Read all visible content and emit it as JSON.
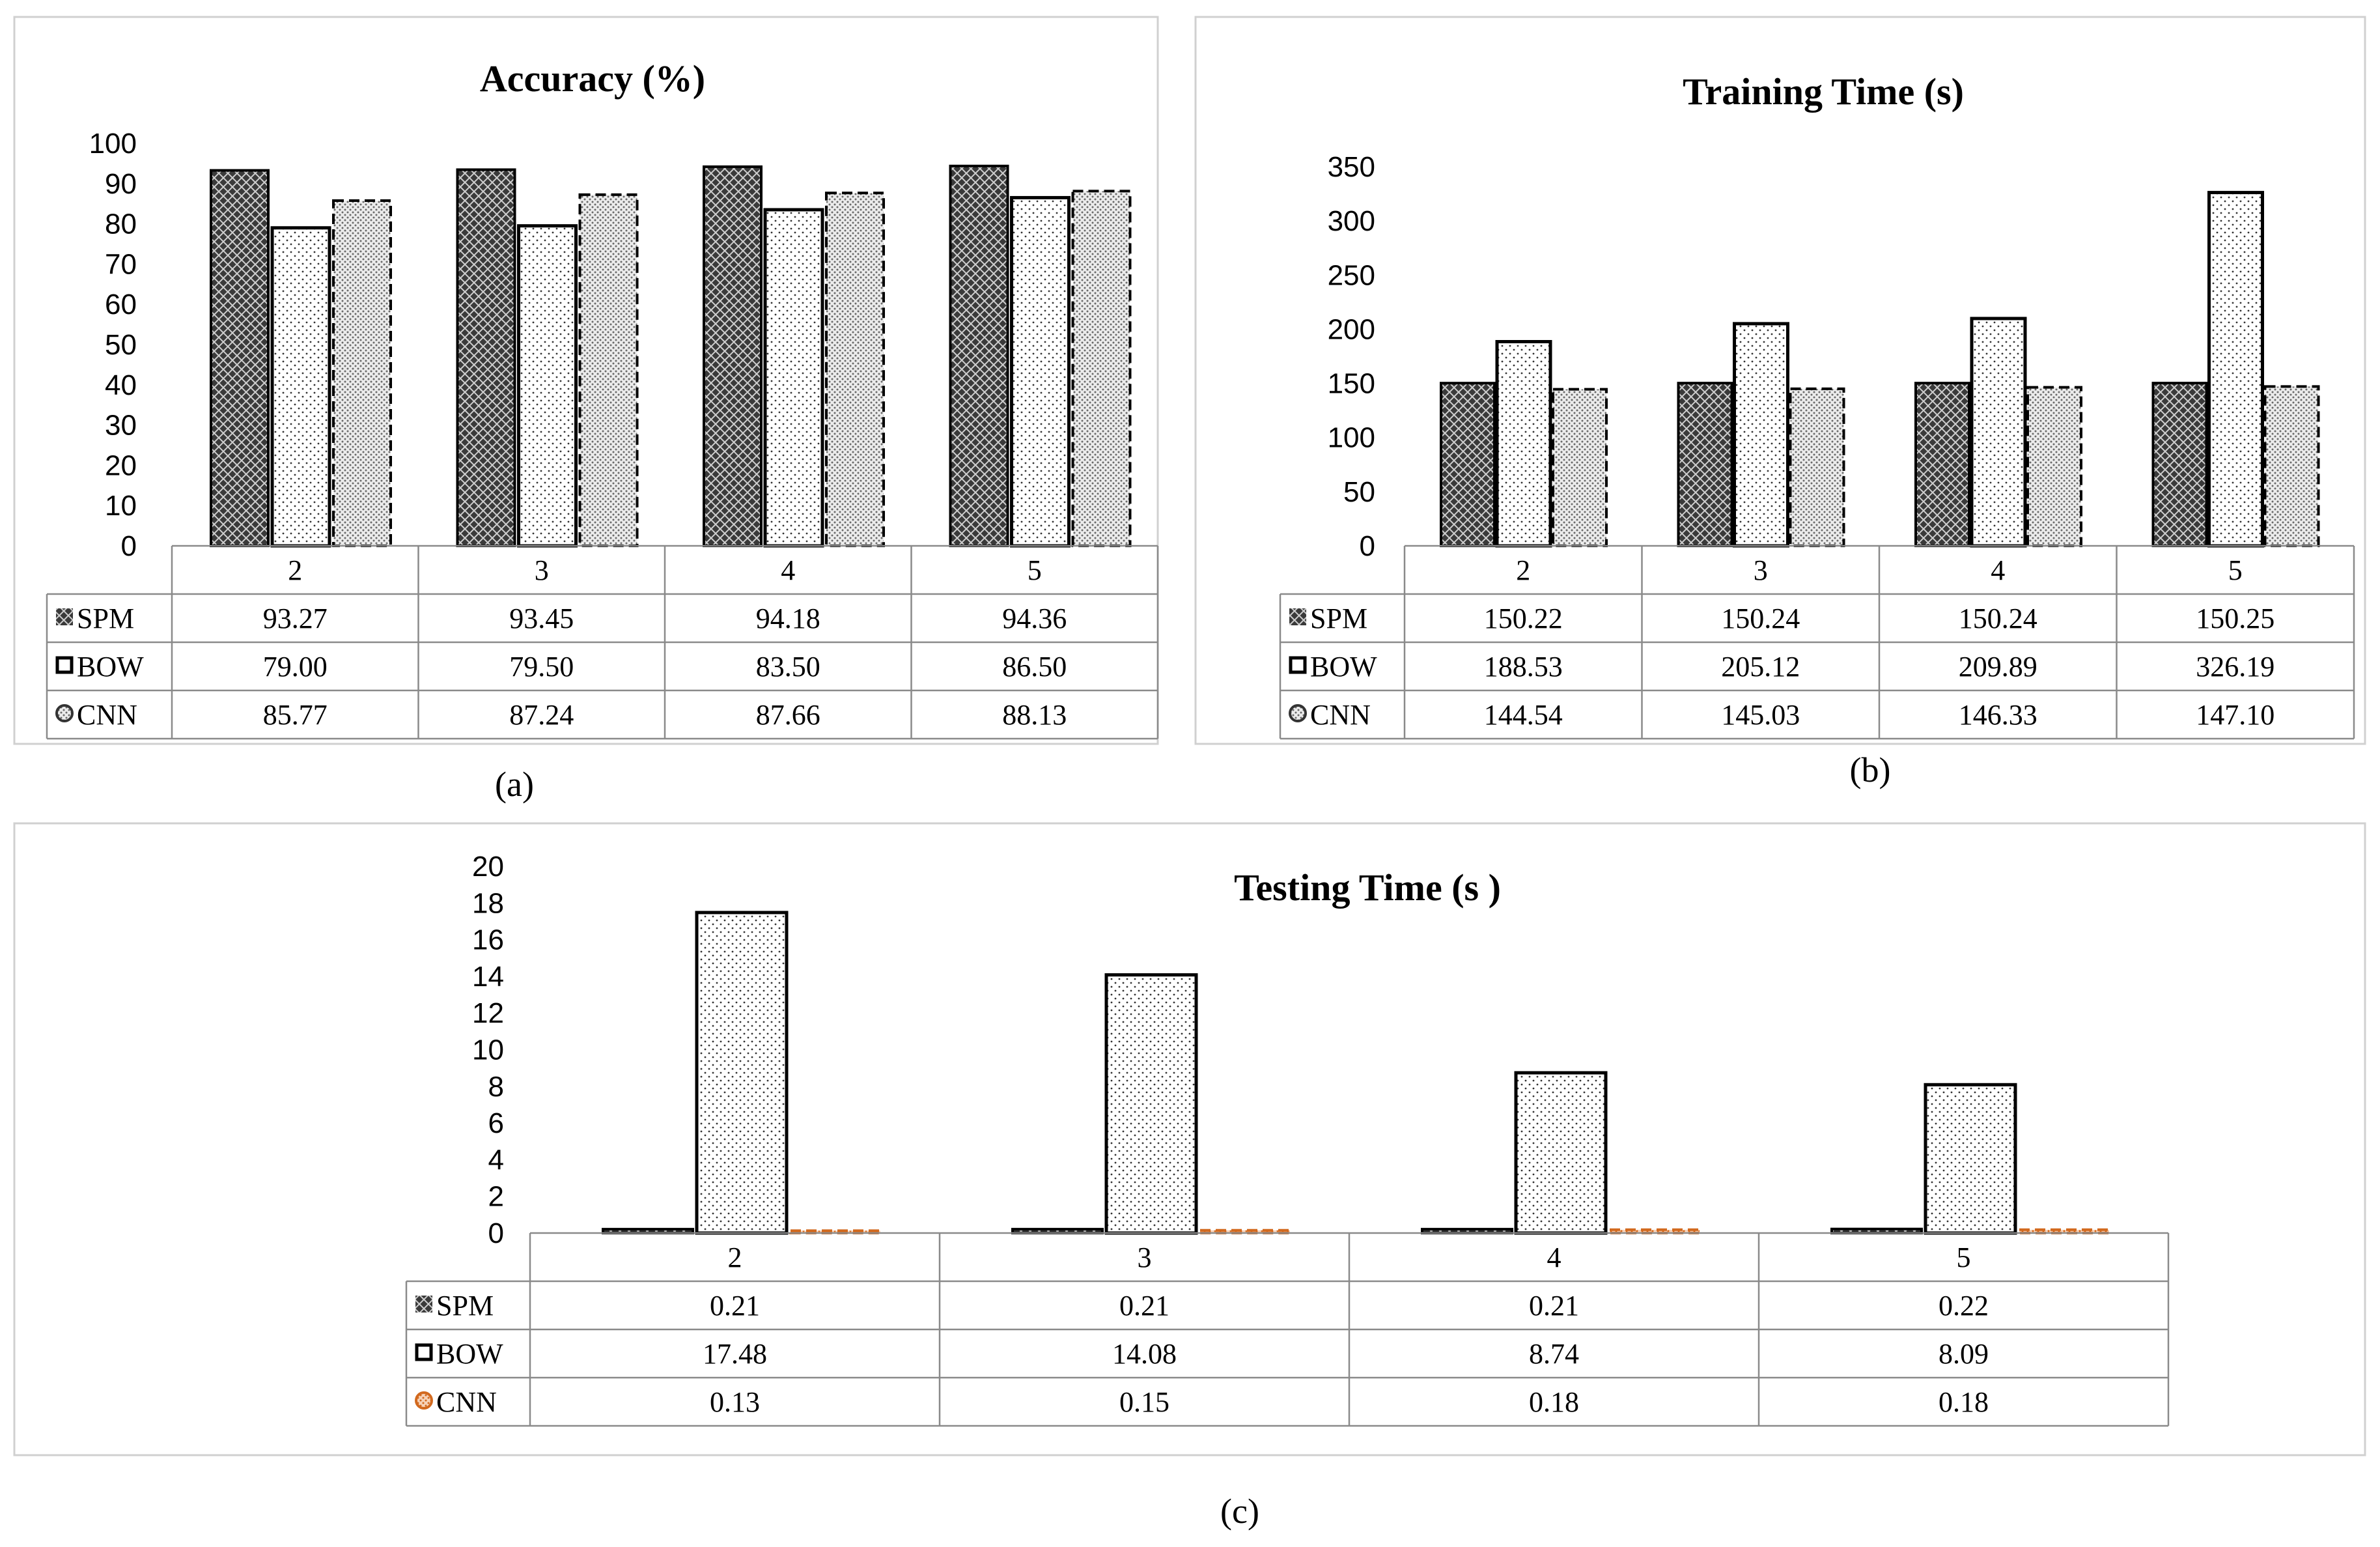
{
  "chart_data": [
    {
      "type": "bar",
      "title": "Accuracy (%)",
      "caption": "(a)",
      "categories": [
        "2",
        "3",
        "4",
        "5"
      ],
      "ylim": [
        0,
        100
      ],
      "yticks": [
        "0",
        "10",
        "20",
        "30",
        "40",
        "50",
        "60",
        "70",
        "80",
        "90",
        "100"
      ],
      "series": [
        {
          "name": "SPM",
          "values": [
            93.27,
            93.45,
            94.18,
            94.36
          ],
          "labels": [
            "93.27",
            "93.45",
            "94.18",
            "94.36"
          ],
          "pattern": "pat-spm",
          "stroke": "#000000"
        },
        {
          "name": "BOW",
          "values": [
            79.0,
            79.5,
            83.5,
            86.5
          ],
          "labels": [
            "79.00",
            "79.50",
            "83.50",
            "86.50"
          ],
          "pattern": "pat-bow",
          "stroke": "#000000"
        },
        {
          "name": "CNN",
          "values": [
            85.77,
            87.24,
            87.66,
            88.13
          ],
          "labels": [
            "85.77",
            "87.24",
            "87.66",
            "88.13"
          ],
          "pattern": "pat-cnn",
          "stroke": "#000000"
        }
      ]
    },
    {
      "type": "bar",
      "title": "Training Time (s)",
      "caption": "(b)",
      "categories": [
        "2",
        "3",
        "4",
        "5"
      ],
      "ylim": [
        0,
        350
      ],
      "yticks": [
        "0",
        "50",
        "100",
        "150",
        "200",
        "250",
        "300",
        "350"
      ],
      "series": [
        {
          "name": "SPM",
          "values": [
            150.22,
            150.24,
            150.24,
            150.25
          ],
          "labels": [
            "150.22",
            "150.24",
            "150.24",
            "150.25"
          ],
          "pattern": "pat-spm",
          "stroke": "#000000"
        },
        {
          "name": "BOW",
          "values": [
            188.53,
            205.12,
            209.89,
            326.19
          ],
          "labels": [
            "188.53",
            "205.12",
            "209.89",
            "326.19"
          ],
          "pattern": "pat-bow",
          "stroke": "#000000"
        },
        {
          "name": "CNN",
          "values": [
            144.54,
            145.03,
            146.33,
            147.1
          ],
          "labels": [
            "144.54",
            "145.03",
            "146.33",
            "147.10"
          ],
          "pattern": "pat-cnn",
          "stroke": "#000000"
        }
      ]
    },
    {
      "type": "bar",
      "title": "Testing Time (s )",
      "caption": "(c)",
      "categories": [
        "2",
        "3",
        "4",
        "5"
      ],
      "ylim": [
        0,
        20
      ],
      "yticks": [
        "0",
        "2",
        "4",
        "6",
        "8",
        "10",
        "12",
        "14",
        "16",
        "18",
        "20"
      ],
      "series": [
        {
          "name": "SPM",
          "values": [
            0.21,
            0.21,
            0.21,
            0.22
          ],
          "labels": [
            "0.21",
            "0.21",
            "0.21",
            "0.22"
          ],
          "pattern": "pat-spm",
          "stroke": "#000000"
        },
        {
          "name": "BOW",
          "values": [
            17.48,
            14.08,
            8.74,
            8.09
          ],
          "labels": [
            "17.48",
            "14.08",
            "8.74",
            "8.09"
          ],
          "pattern": "pat-bow",
          "stroke": "#000000"
        },
        {
          "name": "CNN",
          "values": [
            0.13,
            0.15,
            0.18,
            0.18
          ],
          "labels": [
            "0.13",
            "0.15",
            "0.18",
            "0.18"
          ],
          "pattern": "pat-cnn-orange",
          "stroke": "#d2691e"
        }
      ]
    }
  ]
}
